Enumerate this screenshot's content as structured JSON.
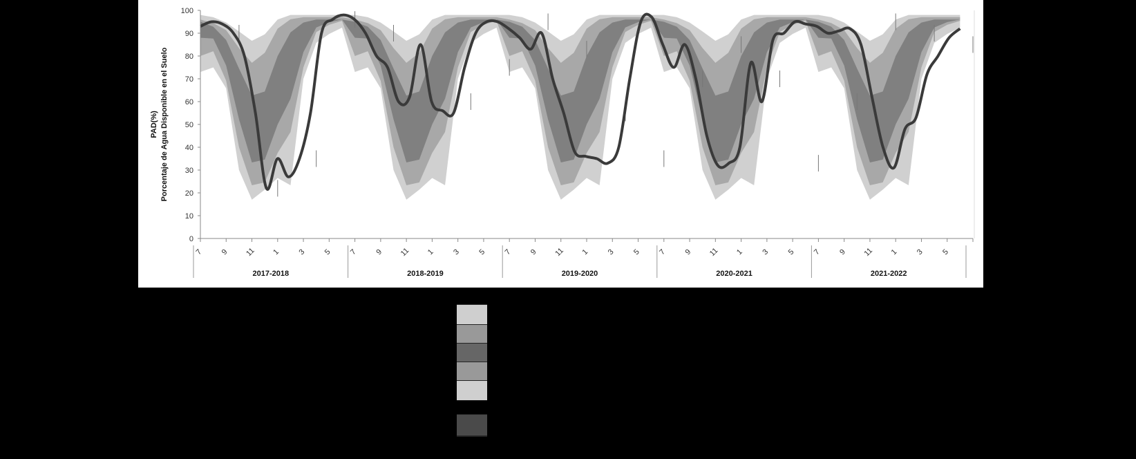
{
  "chart_data": {
    "type": "area",
    "title": "",
    "ylabel": "PAD(%)",
    "ylabel_line2": "Porcentaje de Agua Disponible en el Suelo",
    "ylim": [
      0,
      100
    ],
    "yticks": [
      0,
      10,
      20,
      30,
      40,
      50,
      60,
      70,
      80,
      90,
      100
    ],
    "month_ticks": [
      "7",
      "9",
      "11",
      "1",
      "3",
      "5",
      "7",
      "9",
      "11",
      "1",
      "3",
      "5",
      "7",
      "9",
      "11",
      "1",
      "3",
      "5",
      "7",
      "9",
      "11",
      "1",
      "3",
      "5",
      "7",
      "9",
      "11",
      "1",
      "3",
      "5"
    ],
    "seasons": [
      "2017-2018",
      "2018-2019",
      "2019-2020",
      "2020-2021",
      "2021-2022"
    ],
    "x_index_per_season": 12,
    "bands": {
      "p5": [
        73,
        75,
        75,
        70,
        45,
        25,
        18,
        15,
        22,
        28,
        25,
        20,
        60,
        75,
        85,
        88,
        90,
        92,
        93,
        92
      ],
      "p95": [
        98,
        97,
        97,
        95,
        93,
        90,
        88,
        84,
        90,
        95,
        97,
        98,
        98,
        98,
        98,
        98,
        98,
        98,
        98,
        98
      ],
      "p10": [
        80,
        85,
        80,
        72,
        55,
        35,
        25,
        20,
        25,
        35,
        40,
        45,
        65,
        80,
        90,
        92,
        94,
        95,
        96,
        95
      ],
      "p90": [
        96,
        95,
        94,
        92,
        88,
        82,
        78,
        75,
        82,
        90,
        94,
        96,
        97,
        97,
        97,
        97,
        97,
        97,
        97,
        97
      ],
      "p25": [
        88,
        90,
        86,
        78,
        65,
        48,
        35,
        30,
        35,
        45,
        55,
        60,
        75,
        85,
        92,
        94,
        95,
        96,
        96,
        96
      ],
      "p75": [
        95,
        94,
        92,
        88,
        82,
        72,
        65,
        58,
        65,
        75,
        85,
        90,
        94,
        95,
        96,
        96,
        96,
        96,
        96,
        96
      ]
    },
    "series": [
      {
        "values": [
          93,
          95,
          94,
          90,
          80,
          55,
          22,
          35,
          27,
          35,
          55,
          90,
          96,
          98,
          96,
          90,
          80,
          75,
          60,
          62,
          85,
          60,
          56,
          55,
          75,
          90,
          95,
          95,
          92,
          88,
          83,
          90,
          70,
          55,
          38,
          36,
          35,
          33,
          40,
          70,
          95,
          97,
          85,
          75,
          85,
          70,
          45,
          32,
          33,
          40,
          77,
          60,
          87,
          90,
          95,
          94,
          93,
          90,
          91,
          92,
          85,
          62,
          40,
          31,
          48,
          53,
          72,
          80,
          88,
          92
        ]
      }
    ],
    "legend_swatches": [
      "#cfcfcf",
      "#999999",
      "#666666",
      "#999999",
      "#cfcfcf",
      "#4a4a4a"
    ]
  }
}
